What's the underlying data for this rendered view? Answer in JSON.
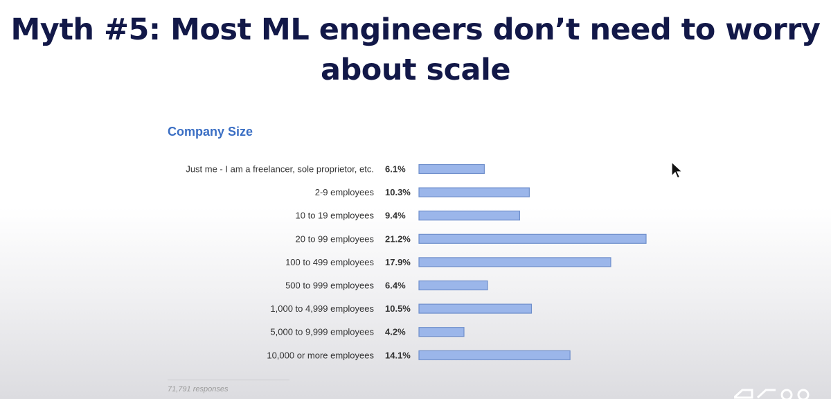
{
  "slide": {
    "title_line1": "Myth #5: Most ML engineers don’t need to worry",
    "title_line2": "about scale",
    "footer": "71,791 responses"
  },
  "colors": {
    "title": "#121848",
    "chart_title": "#3b6fc4",
    "bar_fill": "#9bb6ea",
    "bar_stroke": "#6f8fcb"
  },
  "chart_data": {
    "type": "bar",
    "orientation": "horizontal",
    "title": "Company Size",
    "categories": [
      "Just me - I am a freelancer, sole proprietor, etc.",
      "2-9 employees",
      "10 to 19 employees",
      "20 to 99 employees",
      "100 to 499 employees",
      "500 to 999 employees",
      "1,000 to 4,999 employees",
      "5,000 to 9,999 employees",
      "10,000 or more employees"
    ],
    "values": [
      6.1,
      10.3,
      9.4,
      21.2,
      17.9,
      6.4,
      10.5,
      4.2,
      14.1
    ],
    "value_labels": [
      "6.1%",
      "10.3%",
      "9.4%",
      "21.2%",
      "17.9%",
      "6.4%",
      "10.5%",
      "4.2%",
      "14.1%"
    ],
    "unit": "%",
    "xlim": [
      0,
      21.2
    ],
    "grid": false,
    "legend": "none"
  }
}
